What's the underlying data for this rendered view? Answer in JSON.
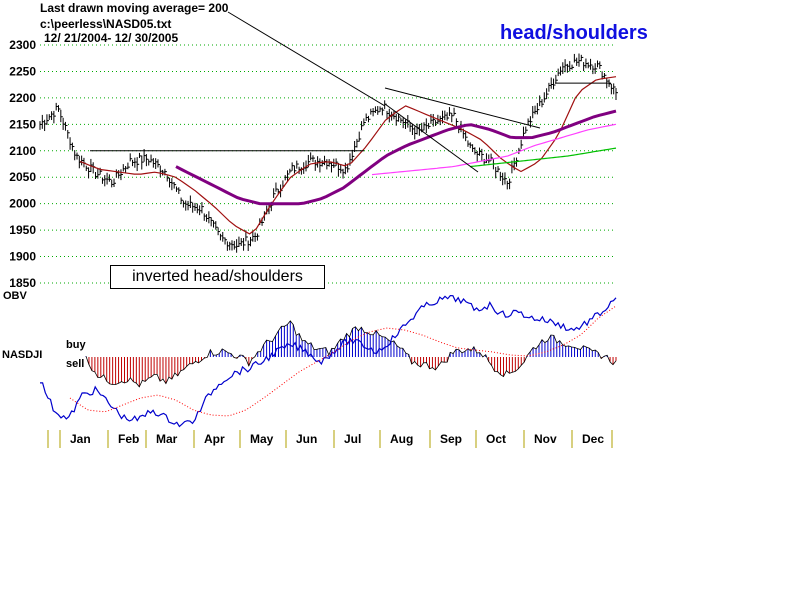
{
  "header": {
    "line1": "Last drawn moving average= 200",
    "line2": "c:\\peerless\\NASD05.txt",
    "line3": "12/ 21/2004- 12/ 30/2005"
  },
  "title": "head/shoulders",
  "annotation": "inverted head/shoulders",
  "indicator_labels": {
    "obv": "OBV",
    "nasdji": "NASDJI",
    "buy": "buy",
    "sell": "sell"
  },
  "colors": {
    "price_bars": "#000000",
    "ma_short": "#a01010",
    "ma_medium": "#800080",
    "ma_long": "#ff40ff",
    "ma_200": "#00c000",
    "obv_line": "#0000cc",
    "obv_ma": "#ff0000",
    "osc_positive": "#0000cc",
    "osc_negative": "#c00000",
    "month_tick": "#b0a000",
    "grid": "#00aa00",
    "title": "#1010e0"
  },
  "chart_data": [
    {
      "type": "line",
      "panel": "price",
      "ylim": [
        1850,
        2300
      ],
      "yticks": [
        1850,
        1900,
        1950,
        2000,
        2050,
        2100,
        2150,
        2200,
        2250,
        2300
      ],
      "x_labels": [
        "Jan",
        "Feb",
        "Mar",
        "Apr",
        "May",
        "Jun",
        "Jul",
        "Aug",
        "Sep",
        "Oct",
        "Nov",
        "Dec"
      ],
      "grid": true,
      "series": [
        {
          "role": "price-high-low-bars",
          "x": [
            "2004-12-21",
            "2005-01-04",
            "2005-01-10",
            "2005-01-20",
            "2005-02-01",
            "2005-02-14",
            "2005-03-01",
            "2005-03-10",
            "2005-03-22",
            "2005-04-01",
            "2005-04-12",
            "2005-04-20",
            "2005-04-28",
            "2005-05-10",
            "2005-05-20",
            "2005-06-01",
            "2005-06-15",
            "2005-06-30",
            "2005-07-15",
            "2005-08-01",
            "2005-08-10",
            "2005-08-22",
            "2005-09-01",
            "2005-09-15",
            "2005-09-28",
            "2005-10-10",
            "2005-10-20",
            "2005-11-01",
            "2005-11-10",
            "2005-11-22",
            "2005-12-01",
            "2005-12-15",
            "2005-12-30"
          ],
          "values": [
            2150,
            2180,
            2090,
            2060,
            2040,
            2080,
            2085,
            2060,
            2000,
            1990,
            1935,
            1920,
            1940,
            2015,
            2065,
            2080,
            2080,
            2065,
            2155,
            2185,
            2160,
            2135,
            2155,
            2165,
            2100,
            2080,
            2040,
            2145,
            2200,
            2260,
            2270,
            2260,
            2210
          ]
        },
        {
          "role": "ma-short",
          "values": [
            2080,
            2065,
            2060,
            2055,
            2060,
            2050,
            2025,
            1995,
            1960,
            1940,
            2000,
            2050,
            2075,
            2080,
            2070,
            2110,
            2160,
            2185,
            2170,
            2155,
            2140,
            2120,
            2085,
            2060,
            2080,
            2130,
            2210,
            2235,
            2240
          ]
        },
        {
          "role": "ma-medium",
          "values": [
            2070,
            2050,
            2030,
            2010,
            2000,
            2000,
            2000,
            2010,
            2030,
            2060,
            2090,
            2110,
            2125,
            2140,
            2150,
            2140,
            2125,
            2125,
            2135,
            2150,
            2165,
            2175
          ]
        },
        {
          "role": "ma-long",
          "values": [
            2055,
            2060,
            2065,
            2070,
            2080,
            2090,
            2110,
            2125,
            2140,
            2150
          ]
        },
        {
          "role": "ma-200",
          "values": [
            2070,
            2080,
            2090,
            2105
          ]
        }
      ],
      "annotations": [
        "inverted head/shoulders",
        "head/shoulders"
      ]
    },
    {
      "type": "area",
      "panel": "indicators",
      "series": [
        {
          "name": "OBV"
        },
        {
          "name": "NASDJI"
        }
      ]
    }
  ]
}
